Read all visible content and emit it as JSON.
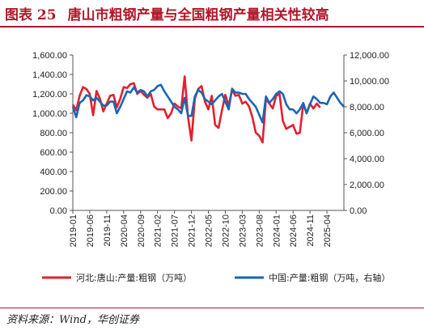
{
  "header": {
    "figure_label": "图表 25",
    "title": "唐山市粗钢产量与全国粗钢产量相关性较高"
  },
  "footer": {
    "source": "资料来源：Wind，华创证券"
  },
  "colors": {
    "series1": "#e2202e",
    "series2": "#1a66b4",
    "accent": "#b0182a"
  },
  "chart_data": {
    "type": "line",
    "title": "",
    "x_tick_labels": [
      "2019-01",
      "2019-06",
      "2019-11",
      "2020-04",
      "2020-09",
      "2021-02",
      "2021-07",
      "2021-12",
      "2022-05",
      "2022-10",
      "2023-03",
      "2023-08",
      "2024-01",
      "2024-06",
      "2024-11",
      "2025-04"
    ],
    "y_left": {
      "min": 0,
      "max": 1600,
      "step": 200,
      "tick_labels": [
        "0.00",
        "200.00",
        "400.00",
        "600.00",
        "800.00",
        "1,000.00",
        "1,200.00",
        "1,400.00",
        "1,600.00"
      ]
    },
    "y_right": {
      "min": 0,
      "max": 12000,
      "step": 2000,
      "tick_labels": [
        "0.00",
        "2,000.00",
        "4,000.00",
        "6,000.00",
        "8,000.00",
        "10,000.00",
        "12,000.00"
      ]
    },
    "legend_position": "bottom",
    "series": [
      {
        "name": "河北:唐山:产量:粗钢（万吨）",
        "axis": "left",
        "start": "2019-01",
        "values": [
          1090,
          1030,
          1180,
          1270,
          1250,
          1200,
          980,
          1230,
          1150,
          1020,
          1100,
          1180,
          1190,
          1060,
          1150,
          1270,
          1260,
          1300,
          1310,
          1200,
          1230,
          1190,
          1160,
          1200,
          1070,
          1040,
          1040,
          1040,
          950,
          1000,
          1100,
          1070,
          1050,
          1380,
          960,
          720,
          1150,
          1250,
          1280,
          1120,
          1040,
          1180,
          880,
          850,
          1030,
          1190,
          1080,
          1240,
          1180,
          1190,
          1100,
          1120,
          1070,
          960,
          800,
          770,
          700,
          1150,
          1100,
          1050,
          1180,
          1200,
          920,
          840,
          860,
          880,
          790,
          800,
          1100,
          1000,
          1100,
          1050,
          1100,
          1060
        ]
      },
      {
        "name": "中国:产量:粗钢（万吨，右轴）",
        "axis": "right",
        "start": "2019-01",
        "values": [
          8000,
          7200,
          8300,
          8500,
          8900,
          8800,
          8500,
          8700,
          8400,
          8100,
          8100,
          8400,
          8400,
          7500,
          8000,
          8600,
          9200,
          9100,
          9500,
          9100,
          9300,
          9200,
          8800,
          9200,
          9300,
          9600,
          9700,
          9200,
          8800,
          8400,
          8000,
          7800,
          7500,
          8700,
          7300,
          7300,
          8800,
          9300,
          9100,
          8600,
          8400,
          8200,
          8500,
          8800,
          9000,
          8400,
          7800,
          9400,
          9100,
          9100,
          9000,
          9000,
          8600,
          8300,
          8000,
          7400,
          6800,
          8800,
          8300,
          8600,
          9000,
          9200,
          9000,
          8200,
          7800,
          7800,
          7500,
          7800,
          8300,
          7500,
          8200,
          8800,
          8600,
          8300,
          8300,
          8200,
          8800,
          9100,
          8700,
          8300,
          8000
        ]
      }
    ]
  }
}
